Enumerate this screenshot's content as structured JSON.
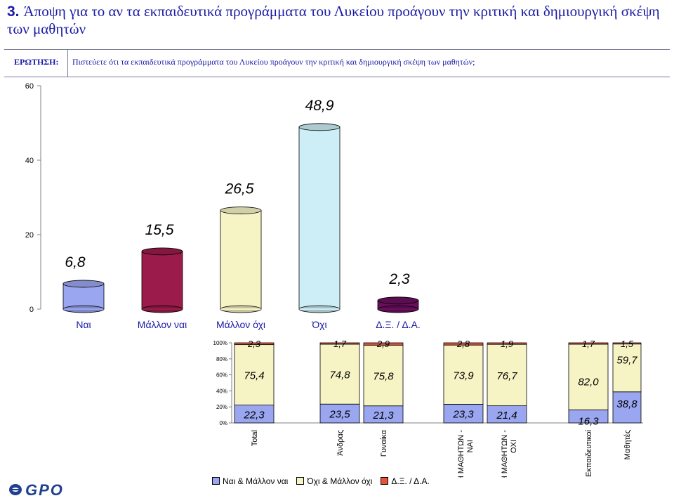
{
  "slide": {
    "number": "3.",
    "title": "Άποψη για το αν τα εκπαιδευτικά προγράμματα του Λυκείου προάγουν την κριτική και δημιουργική σκέψη των μαθητών"
  },
  "question": {
    "label": "ΕΡΩΤΗΣΗ:",
    "text": "Πιστεύετε ότι τα εκπαιδευτικά προγράμματα του Λυκείου προάγουν την κριτική και δημιουργική σκέψη των μαθητών;"
  },
  "logo": {
    "text": "GPO",
    "color": "#1f3f8f"
  },
  "chart_data": [
    {
      "type": "bar",
      "title": "",
      "xlabel": "",
      "ylabel": "",
      "ylim": [
        0,
        60
      ],
      "yticks": [
        "0",
        "20",
        "40",
        "60"
      ],
      "categories": [
        "Ναι",
        "Μάλλον ναι",
        "Μάλλον όχι",
        "Όχι",
        "Δ.Ξ. / Δ.Α."
      ],
      "values": [
        6.8,
        15.5,
        26.5,
        48.9,
        2.3
      ],
      "value_labels": [
        "6,8",
        "15,5",
        "26,5",
        "48,9",
        "2,3"
      ],
      "colors": [
        "#9aa6f0",
        "#9b1b4a",
        "#f6f4c4",
        "#cdeef6",
        "#6a0f5e"
      ],
      "style": "3d-cylinder-ish",
      "grid": false
    },
    {
      "type": "bar",
      "stacked": true,
      "percent": true,
      "yticks": [
        "0%",
        "20%",
        "40%",
        "60%",
        "80%",
        "100%"
      ],
      "categories": [
        "Total",
        "Άνδρας",
        "Γυναίκα",
        "ΥΠΑΡΞΗ ΜΑΘΗΤΩΝ - ΝΑΙ",
        "ΥΠΑΡΞΗ ΜΑΘΗΤΩΝ - ΟΧΙ",
        "Εκπαιδευτικοί",
        "Μαθητές"
      ],
      "legend_position": "bottom",
      "series": [
        {
          "name": "Ναι & Μάλλον ναι",
          "color": "#9aa6f0",
          "values": [
            22.3,
            23.5,
            21.3,
            23.3,
            21.4,
            16.3,
            38.8
          ],
          "labels": [
            "22,3",
            "23,5",
            "21,3",
            "23,3",
            "21,4",
            "16,3",
            "38,8"
          ]
        },
        {
          "name": "Όχι & Μάλλον όχι",
          "color": "#f6f4c4",
          "values": [
            75.4,
            74.8,
            75.8,
            73.9,
            76.7,
            82.0,
            59.7
          ],
          "labels": [
            "75,4",
            "74,8",
            "75,8",
            "73,9",
            "76,7",
            "82,0",
            "59,7"
          ]
        },
        {
          "name": "Δ.Ξ. / Δ.Α.",
          "color": "#e8523a",
          "values": [
            2.3,
            1.7,
            2.9,
            2.8,
            1.9,
            1.7,
            1.5
          ],
          "labels": [
            "2,3",
            "1,7",
            "2,9",
            "2,8",
            "1,9",
            "1,7",
            "1,5"
          ]
        }
      ]
    }
  ]
}
